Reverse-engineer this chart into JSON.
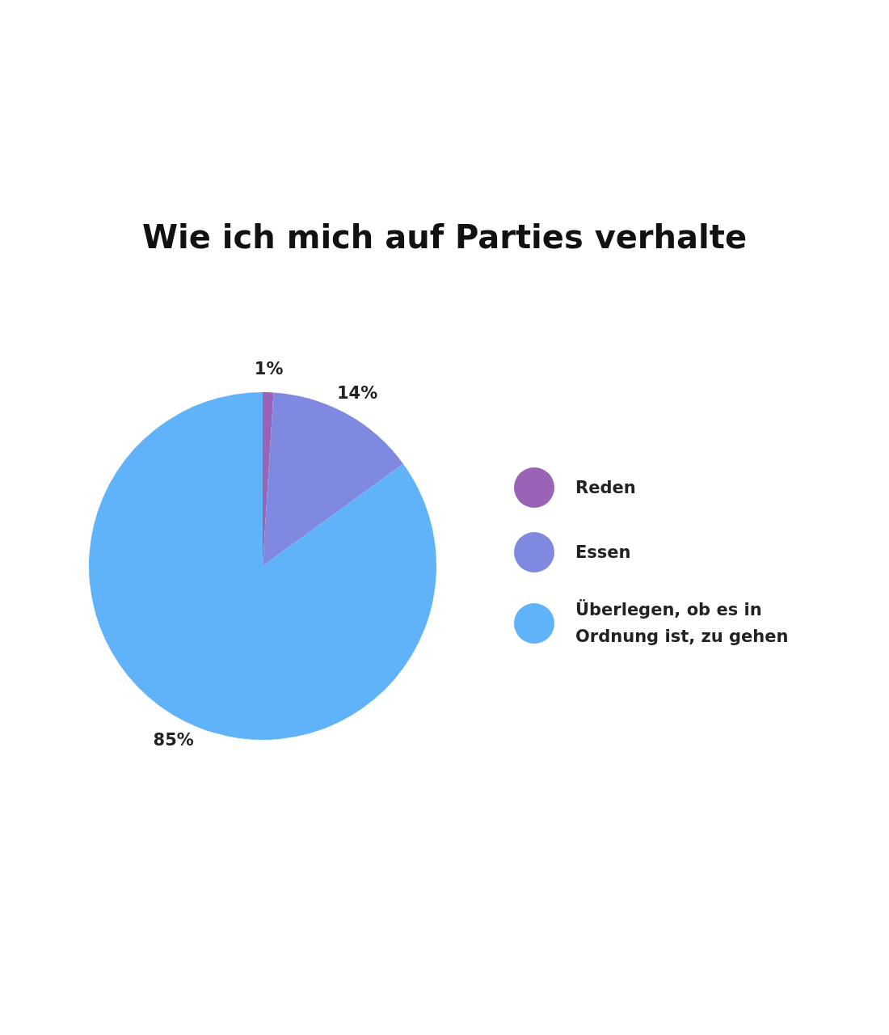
{
  "chart_data": {
    "type": "pie",
    "title": "Wie ich mich auf Parties verhalte",
    "categories": [
      "Reden",
      "Essen",
      "Überlegen, ob es in Ordnung ist, zu gehen"
    ],
    "values": [
      1,
      14,
      85
    ],
    "colors": [
      "#9b63b5",
      "#8089e0",
      "#60b3f8"
    ],
    "value_labels": [
      "1%",
      "14%",
      "85%"
    ],
    "legend": "right"
  }
}
